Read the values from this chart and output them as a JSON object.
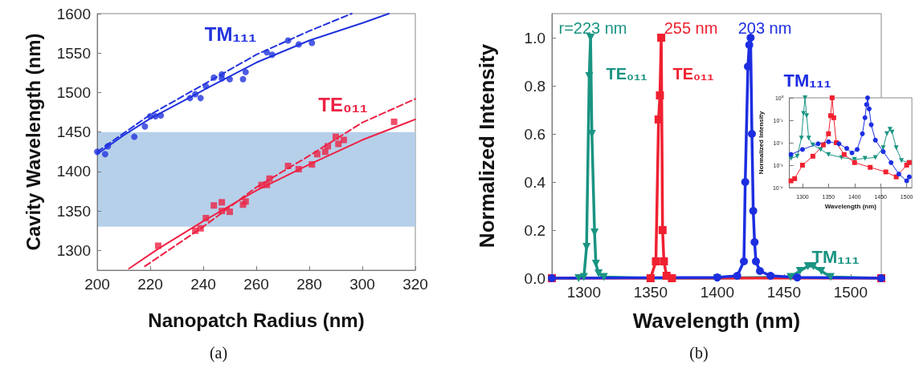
{
  "chart_data": [
    {
      "type": "scatter",
      "xlabel": "Nanopatch Radius (nm)",
      "ylabel": "Cavity Wavelength (nm)",
      "xlim": [
        200,
        320
      ],
      "ylim": [
        1275,
        1600
      ],
      "xticks": [
        200,
        220,
        240,
        260,
        280,
        300,
        320
      ],
      "yticks": [
        1300,
        1350,
        1400,
        1450,
        1500,
        1550,
        1600
      ],
      "bands": [
        {
          "axis": "y",
          "from": 1330,
          "to": 1450,
          "color": "#a9c8e6"
        }
      ],
      "series": [
        {
          "type": "line",
          "color": "#2233dd",
          "marker": "none",
          "line_style": "solid",
          "x": [
            200,
            210,
            220,
            240,
            260,
            280,
            300,
            310
          ],
          "values": [
            1422,
            1446,
            1467,
            1503,
            1538,
            1566,
            1588,
            1600
          ]
        },
        {
          "type": "line",
          "color": "#2233dd",
          "marker": "none",
          "line_style": "dashed",
          "x": [
            200,
            220,
            240,
            260,
            280,
            296
          ],
          "values": [
            1425,
            1472,
            1510,
            1548,
            1578,
            1600
          ]
        },
        {
          "type": "line",
          "color": "#ee2244",
          "marker": "none",
          "line_style": "solid",
          "x": [
            212,
            223,
            240,
            260,
            280,
            300,
            320
          ],
          "values": [
            1277,
            1302,
            1337,
            1376,
            1409,
            1440,
            1466
          ]
        },
        {
          "type": "line",
          "color": "#ee2244",
          "marker": "none",
          "line_style": "dashed",
          "x": [
            218,
            240,
            260,
            280,
            300,
            320
          ],
          "values": [
            1280,
            1330,
            1380,
            1420,
            1462,
            1492
          ]
        },
        {
          "color": "#2233dd",
          "marker": "circle",
          "x": [
            200,
            203,
            204,
            214,
            218,
            220,
            222,
            224,
            235,
            237,
            239,
            241,
            244,
            247,
            247,
            250,
            255,
            256,
            264,
            266,
            272,
            276,
            281
          ],
          "values": [
            1425,
            1422,
            1432,
            1444,
            1457,
            1470,
            1470,
            1471,
            1493,
            1498,
            1493,
            1508,
            1519,
            1523,
            1518,
            1517,
            1517,
            1526,
            1551,
            1548,
            1566,
            1561,
            1563
          ]
        },
        {
          "color": "#ee2244",
          "marker": "square",
          "x": [
            223,
            237,
            239,
            241,
            244,
            247,
            247,
            250,
            255,
            256,
            262,
            264,
            265,
            272,
            276,
            281,
            283,
            286,
            287,
            290,
            291,
            293,
            312
          ],
          "values": [
            1306,
            1325,
            1328,
            1341,
            1357,
            1361,
            1350,
            1349,
            1358,
            1362,
            1383,
            1383,
            1391,
            1407,
            1403,
            1409,
            1422,
            1425,
            1432,
            1444,
            1435,
            1440,
            1463
          ]
        }
      ],
      "annotations": [
        "TM₁₁₁",
        "TE₀₁₁",
        "(a)"
      ]
    },
    {
      "type": "line",
      "xlabel": "Wavelength (nm)",
      "ylabel": "Normalized Intensity",
      "xlim": [
        1276,
        1523
      ],
      "ylim": [
        0,
        1.1
      ],
      "xticks": [
        1300,
        1350,
        1400,
        1450,
        1500
      ],
      "yticks": [
        {
          "value": 0,
          "label": "0.0"
        },
        0.2,
        0.4,
        0.6,
        0.8,
        {
          "value": 1,
          "label": "1.0"
        }
      ],
      "series": [
        {
          "color": "#1a9483",
          "marker": "triangle",
          "x": [
            1276,
            1296,
            1300,
            1302,
            1304,
            1305,
            1306,
            1308,
            1309,
            1311,
            1315,
            1350,
            1400,
            1455,
            1462,
            1468,
            1472,
            1478,
            1485,
            1523
          ],
          "values": [
            0,
            0,
            0.005,
            0.13,
            0.84,
            1.0,
            0.6,
            0.19,
            0.06,
            0.02,
            0.005,
            0,
            0,
            0.005,
            0.03,
            0.05,
            0.05,
            0.03,
            0.005,
            0
          ]
        },
        {
          "color": "#f02030",
          "marker": "square",
          "x": [
            1276,
            1350,
            1354,
            1356,
            1357,
            1358,
            1359,
            1360,
            1362,
            1366,
            1523
          ],
          "values": [
            0,
            0,
            0.07,
            0.66,
            0.76,
            1.0,
            0.2,
            0.07,
            0.01,
            0,
            0
          ]
        },
        {
          "color": "#1c2ee0",
          "marker": "circle",
          "x": [
            1276,
            1400,
            1415,
            1420,
            1421,
            1423,
            1424,
            1425,
            1426,
            1427,
            1428,
            1429,
            1432,
            1440,
            1460,
            1523
          ],
          "values": [
            0,
            0.003,
            0.01,
            0.07,
            0.4,
            0.88,
            0.97,
            1.0,
            0.6,
            0.28,
            0.15,
            0.07,
            0.03,
            0.01,
            0.003,
            0
          ]
        }
      ],
      "annotations": [
        "r=223 nm",
        "255 nm",
        "203 nm",
        "TE₀₁₁",
        "TE₀₁₁",
        "TM₁₁₁",
        "TM₁₁₁",
        "(b)"
      ]
    },
    {
      "type": "line",
      "xlabel": "Wavelength (nm)",
      "ylabel": "Normalized Intensity",
      "log": "y",
      "xlim": [
        1275,
        1510
      ],
      "ylim": [
        0.0001,
        1
      ],
      "xticks": [
        1300,
        1350,
        1400,
        1450,
        1500
      ],
      "yticks": [
        {
          "value": 0.0001,
          "label": "10⁻⁴"
        },
        {
          "value": 0.001,
          "label": "10⁻³"
        },
        {
          "value": 0.01,
          "label": "10⁻²"
        },
        {
          "value": 0.1,
          "label": "10⁻¹"
        },
        {
          "value": 1,
          "label": "10⁰"
        }
      ],
      "series": [
        {
          "color": "#1a9483",
          "marker": "triangle",
          "x": [
            1278,
            1290,
            1298,
            1302,
            1305,
            1308,
            1312,
            1320,
            1335,
            1350,
            1375,
            1400,
            1420,
            1440,
            1455,
            1462,
            1468,
            1472,
            1480,
            1490,
            1505
          ],
          "values": [
            0.002,
            0.0025,
            0.016,
            0.2,
            1,
            0.16,
            0.016,
            0.008,
            0.005,
            0.003,
            0.0022,
            0.0018,
            0.002,
            0.0022,
            0.006,
            0.025,
            0.04,
            0.03,
            0.006,
            0.0016,
            0.0013
          ]
        },
        {
          "color": "#f02030",
          "marker": "square",
          "x": [
            1278,
            1285,
            1300,
            1320,
            1340,
            1350,
            1354,
            1357,
            1360,
            1365,
            1380,
            1400,
            1430,
            1460,
            1480,
            1500,
            1505
          ],
          "values": [
            0.0002,
            0.00025,
            0.001,
            0.0025,
            0.008,
            0.025,
            0.16,
            1,
            0.13,
            0.01,
            0.003,
            0.0013,
            0.0008,
            0.0005,
            0.0003,
            0.001,
            0.0013
          ]
        },
        {
          "color": "#1c2ee0",
          "marker": "circle",
          "x": [
            1278,
            1300,
            1330,
            1350,
            1370,
            1385,
            1395,
            1405,
            1415,
            1420,
            1423,
            1425,
            1428,
            1432,
            1440,
            1455,
            1470,
            1485,
            1500,
            1505
          ],
          "values": [
            0.003,
            0.005,
            0.009,
            0.011,
            0.009,
            0.0056,
            0.0035,
            0.005,
            0.025,
            0.13,
            0.5,
            1,
            0.32,
            0.063,
            0.013,
            0.004,
            0.0013,
            0.0004,
            0.0002,
            0.0003
          ]
        }
      ]
    }
  ]
}
